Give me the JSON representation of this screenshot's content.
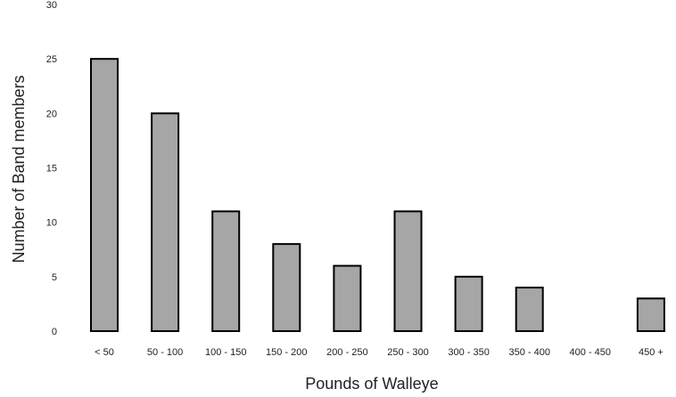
{
  "chart_data": {
    "type": "bar",
    "title": "",
    "xlabel": "Pounds of Walleye",
    "ylabel": "Number of Band members",
    "categories": [
      "< 50",
      "50 - 100",
      "100 - 150",
      "150 - 200",
      "200 - 250",
      "250 - 300",
      "300 - 350",
      "350 - 400",
      "400 - 450",
      "450 +"
    ],
    "values": [
      25,
      20,
      11,
      8,
      6,
      11,
      5,
      4,
      0,
      3
    ],
    "ylim": [
      0,
      30
    ],
    "yticks": [
      "0",
      "5",
      "10",
      "15",
      "20",
      "25",
      "30"
    ],
    "grid": false,
    "legend": "none",
    "bar_color": "#a6a6a6",
    "bar_edge_color": "#000000"
  }
}
